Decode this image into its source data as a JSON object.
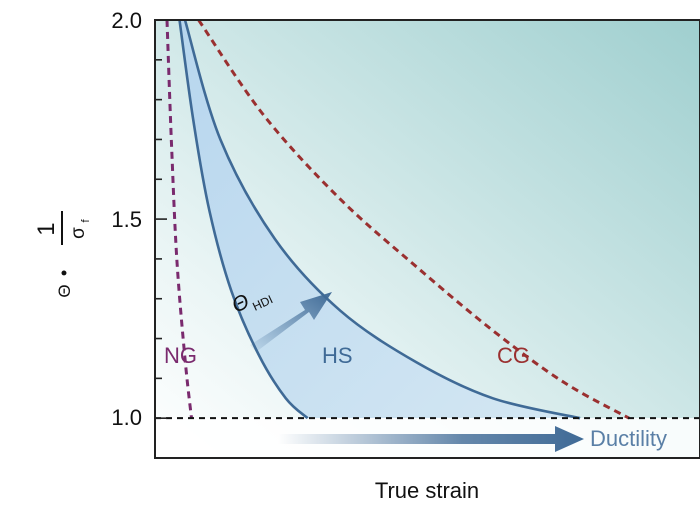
{
  "chart_data": {
    "type": "line",
    "title": "",
    "xlabel": "True strain",
    "ylabel": {
      "symbol": "Θ",
      "dot": "•",
      "numerator": "1",
      "denominator": "σ",
      "denominator_sub": "f"
    },
    "ylim": [
      0.9,
      2.0
    ],
    "xlim": [
      0,
      1
    ],
    "yticks": [
      "1.0",
      "1.5",
      "2.0"
    ],
    "ytick_values": [
      1.0,
      1.5,
      2.0
    ],
    "x_tick_labels_shown": false,
    "reference_line": {
      "y": 1.0,
      "style": "dashed"
    },
    "series": [
      {
        "name": "NG",
        "style": "dashed",
        "color": "#7a2a6e",
        "x": [
          0.022,
          0.03,
          0.04,
          0.055,
          0.067
        ],
        "y": [
          2.0,
          1.7,
          1.4,
          1.15,
          1.0
        ]
      },
      {
        "name": "",
        "style": "solid",
        "color": "#3f6a96",
        "x": [
          0.045,
          0.07,
          0.1,
          0.14,
          0.19,
          0.24,
          0.28
        ],
        "y": [
          2.0,
          1.75,
          1.52,
          1.32,
          1.16,
          1.05,
          1.0
        ]
      },
      {
        "name": "",
        "style": "solid",
        "color": "#3f6a96",
        "x": [
          0.055,
          0.12,
          0.22,
          0.34,
          0.48,
          0.62,
          0.78
        ],
        "y": [
          2.0,
          1.7,
          1.45,
          1.27,
          1.14,
          1.05,
          1.0
        ]
      },
      {
        "name": "CG",
        "style": "dashed",
        "color": "#9a3030",
        "x": [
          0.08,
          0.2,
          0.34,
          0.48,
          0.62,
          0.75,
          0.87
        ],
        "y": [
          2.0,
          1.76,
          1.55,
          1.38,
          1.22,
          1.09,
          1.0
        ]
      }
    ],
    "annotations": {
      "ng": "NG",
      "hs": "HS",
      "cg": "CG",
      "theta_hdi": "Θ",
      "theta_hdi_sub": "HDI",
      "ductility": "Ductility"
    },
    "colors": {
      "background_light": "#ffffff",
      "background_dark": "#9fcfcf",
      "hs_fill": "#c4def0",
      "arrow": "#3f6a96",
      "ductility_text": "#5a7fa6",
      "hs_text": "#3f6a96",
      "ng_text": "#7a2a6e",
      "cg_text": "#9a3030"
    },
    "grid": false,
    "legend": "none"
  }
}
